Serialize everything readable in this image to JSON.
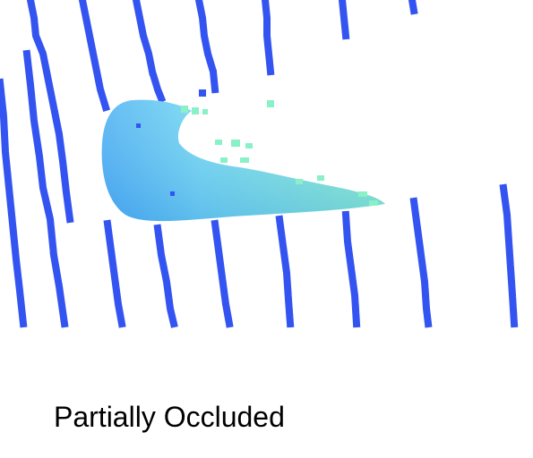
{
  "caption": "Partially Occluded",
  "colors": {
    "scanline": "#3354f0",
    "object_near": "#5cc8f5",
    "object_far": "#7ff0c8",
    "background": "#ffffff"
  }
}
